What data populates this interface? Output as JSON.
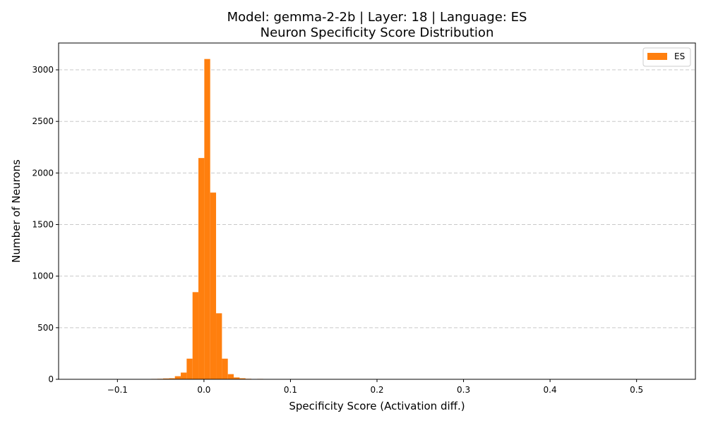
{
  "chart_data": {
    "type": "bar",
    "title": "Model: gemma-2-2b | Layer: 18 | Language: ES",
    "subtitle": "Neuron Specificity Score Distribution",
    "xlabel": "Specificity Score (Activation diff.)",
    "ylabel": "Number of Neurons",
    "xlim": [
      -0.168,
      0.568
    ],
    "ylim": [
      0,
      3260
    ],
    "x_ticks": [
      -0.1,
      0.0,
      0.1,
      0.2,
      0.3,
      0.4,
      0.5
    ],
    "x_tick_labels": [
      "−0.1",
      "0.0",
      "0.1",
      "0.2",
      "0.3",
      "0.4",
      "0.5"
    ],
    "y_ticks": [
      0,
      500,
      1000,
      1500,
      2000,
      2500,
      3000
    ],
    "y_tick_labels": [
      "0",
      "500",
      "1000",
      "1500",
      "2000",
      "2500",
      "3000"
    ],
    "grid": "y-dashed",
    "legend": {
      "position": "top-right",
      "entries": [
        "ES"
      ]
    },
    "series": [
      {
        "name": "ES",
        "color": "#ff7f0e",
        "bin_width": 0.0068,
        "bins": [
          {
            "x0": -0.1084,
            "count": 3
          },
          {
            "x0": -0.0948,
            "count": 2
          },
          {
            "x0": -0.088,
            "count": 2
          },
          {
            "x0": -0.0744,
            "count": 2
          },
          {
            "x0": -0.0676,
            "count": 3
          },
          {
            "x0": -0.0608,
            "count": 4
          },
          {
            "x0": -0.054,
            "count": 5
          },
          {
            "x0": -0.0472,
            "count": 8
          },
          {
            "x0": -0.0404,
            "count": 10
          },
          {
            "x0": -0.0336,
            "count": 30
          },
          {
            "x0": -0.0268,
            "count": 65
          },
          {
            "x0": -0.02,
            "count": 200
          },
          {
            "x0": -0.0132,
            "count": 845
          },
          {
            "x0": -0.0064,
            "count": 2145
          },
          {
            "x0": 0.0004,
            "count": 3105
          },
          {
            "x0": 0.0072,
            "count": 1810
          },
          {
            "x0": 0.014,
            "count": 640
          },
          {
            "x0": 0.0208,
            "count": 200
          },
          {
            "x0": 0.0276,
            "count": 50
          },
          {
            "x0": 0.0344,
            "count": 18
          },
          {
            "x0": 0.0412,
            "count": 10
          },
          {
            "x0": 0.048,
            "count": 5
          },
          {
            "x0": 0.0548,
            "count": 3
          },
          {
            "x0": 0.0616,
            "count": 4
          },
          {
            "x0": 0.0684,
            "count": 3
          },
          {
            "x0": 0.082,
            "count": 2
          },
          {
            "x0": 0.1092,
            "count": 2
          },
          {
            "x0": 0.2588,
            "count": 3
          }
        ]
      }
    ]
  }
}
